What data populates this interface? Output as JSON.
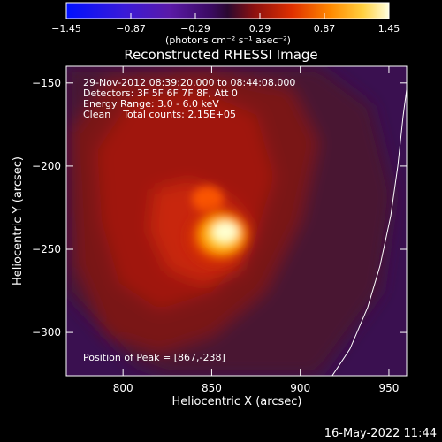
{
  "chart_data": {
    "type": "heatmap",
    "title": "Reconstructed RHESSI Image",
    "xlabel": "Heliocentric X (arcsec)",
    "ylabel": "Heliocentric Y (arcsec)",
    "xlim": [
      768,
      960
    ],
    "ylim": [
      -326,
      -140
    ],
    "xticks": [
      800,
      850,
      900,
      950
    ],
    "xtick_labels": [
      "800",
      "850",
      "900",
      "950"
    ],
    "yticks": [
      -150,
      -200,
      -250,
      -300
    ],
    "ytick_labels": [
      "−150",
      "−200",
      "−250",
      "−300"
    ],
    "colorbar": {
      "min": -1.45,
      "max": 1.45,
      "ticks": [
        -1.45,
        -0.87,
        -0.29,
        0.29,
        0.87,
        1.45
      ],
      "tick_labels": [
        "−1.45",
        "−0.87",
        "−0.29",
        "0.29",
        "0.87",
        "1.45"
      ],
      "unit_label": "(photons cm⁻² s⁻¹ asec⁻²)"
    },
    "annotations": [
      "29-Nov-2012 08:39:20.000 to 08:44:08.000",
      "Detectors: 3F 5F 6F 7F 8F, Att 0",
      "Energy Range: 3.0 - 6.0 keV",
      "Clean    Total counts: 2.15E+05"
    ],
    "peak_label": "Position of Peak = [867,-238]",
    "peak": [
      867,
      -238
    ],
    "limb_curve": [
      [
        918,
        -326
      ],
      [
        928,
        -310
      ],
      [
        938,
        -285
      ],
      [
        945,
        -260
      ],
      [
        951,
        -230
      ],
      [
        955,
        -200
      ],
      [
        958,
        -170
      ],
      [
        960,
        -154
      ]
    ],
    "footer": "16-May-2022 11:44"
  }
}
